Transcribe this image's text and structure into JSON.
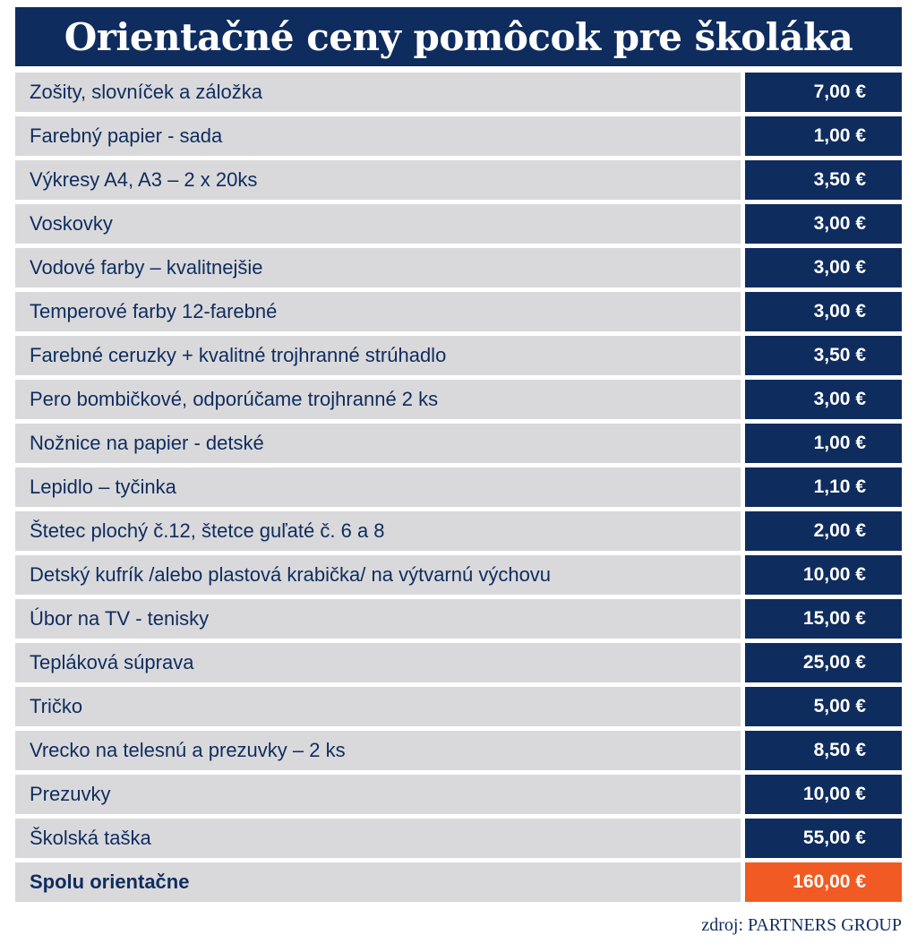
{
  "colors": {
    "navy": "#0f2c5e",
    "row_grey": "#d9d9db",
    "total_orange": "#f15a22"
  },
  "title": "Orientačné ceny pomôcok pre školáka",
  "chart_data": {
    "type": "table",
    "title": "Orientačné ceny pomôcok pre školáka",
    "columns": [
      "item",
      "price"
    ],
    "rows": [
      {
        "label": "Zošity,  slovníček a záložka",
        "price": "7,00 €",
        "value": 7.0
      },
      {
        "label": "Farebný papier - sada",
        "price": "1,00 €",
        "value": 1.0
      },
      {
        "label": "Výkresy A4, A3 – 2 x 20ks",
        "price": "3,50 €",
        "value": 3.5
      },
      {
        "label": "Voskovky",
        "price": "3,00 €",
        "value": 3.0
      },
      {
        "label": "Vodové farby – kvalitnejšie",
        "price": "3,00 €",
        "value": 3.0
      },
      {
        "label": "Temperové farby 12-farebné",
        "price": "3,00 €",
        "value": 3.0
      },
      {
        "label": "Farebné ceruzky + kvalitné trojhranné strúhadlo",
        "price": "3,50 €",
        "value": 3.5
      },
      {
        "label": "Pero bombičkové, odporúčame trojhranné 2 ks",
        "price": "3,00 €",
        "value": 3.0
      },
      {
        "label": "Nožnice na papier - detské",
        "price": "1,00 €",
        "value": 1.0
      },
      {
        "label": "Lepidlo – tyčinka",
        "price": "1,10 €",
        "value": 1.1
      },
      {
        "label": "Štetec plochý č.12, štetce guľaté č. 6 a 8",
        "price": "2,00 €",
        "value": 2.0
      },
      {
        "label": "Detský kufrík /alebo plastová krabička/ na výtvarnú výchovu",
        "price": "10,00 €",
        "value": 10.0
      },
      {
        "label": "Úbor na TV - tenisky",
        "price": "15,00 €",
        "value": 15.0
      },
      {
        "label": "Tepláková súprava",
        "price": "25,00 €",
        "value": 25.0
      },
      {
        "label": "Tričko",
        "price": "5,00 €",
        "value": 5.0
      },
      {
        "label": "Vrecko na telesnú a prezuvky – 2 ks",
        "price": "8,50 €",
        "value": 8.5
      },
      {
        "label": "Prezuvky",
        "price": "10,00 €",
        "value": 10.0
      },
      {
        "label": "Školská taška",
        "price": "55,00 €",
        "value": 55.0
      }
    ],
    "total": {
      "label": "Spolu orientačne",
      "price": "160,00 €",
      "value": 160.0
    },
    "source": "zdroj: PARTNERS GROUP"
  }
}
